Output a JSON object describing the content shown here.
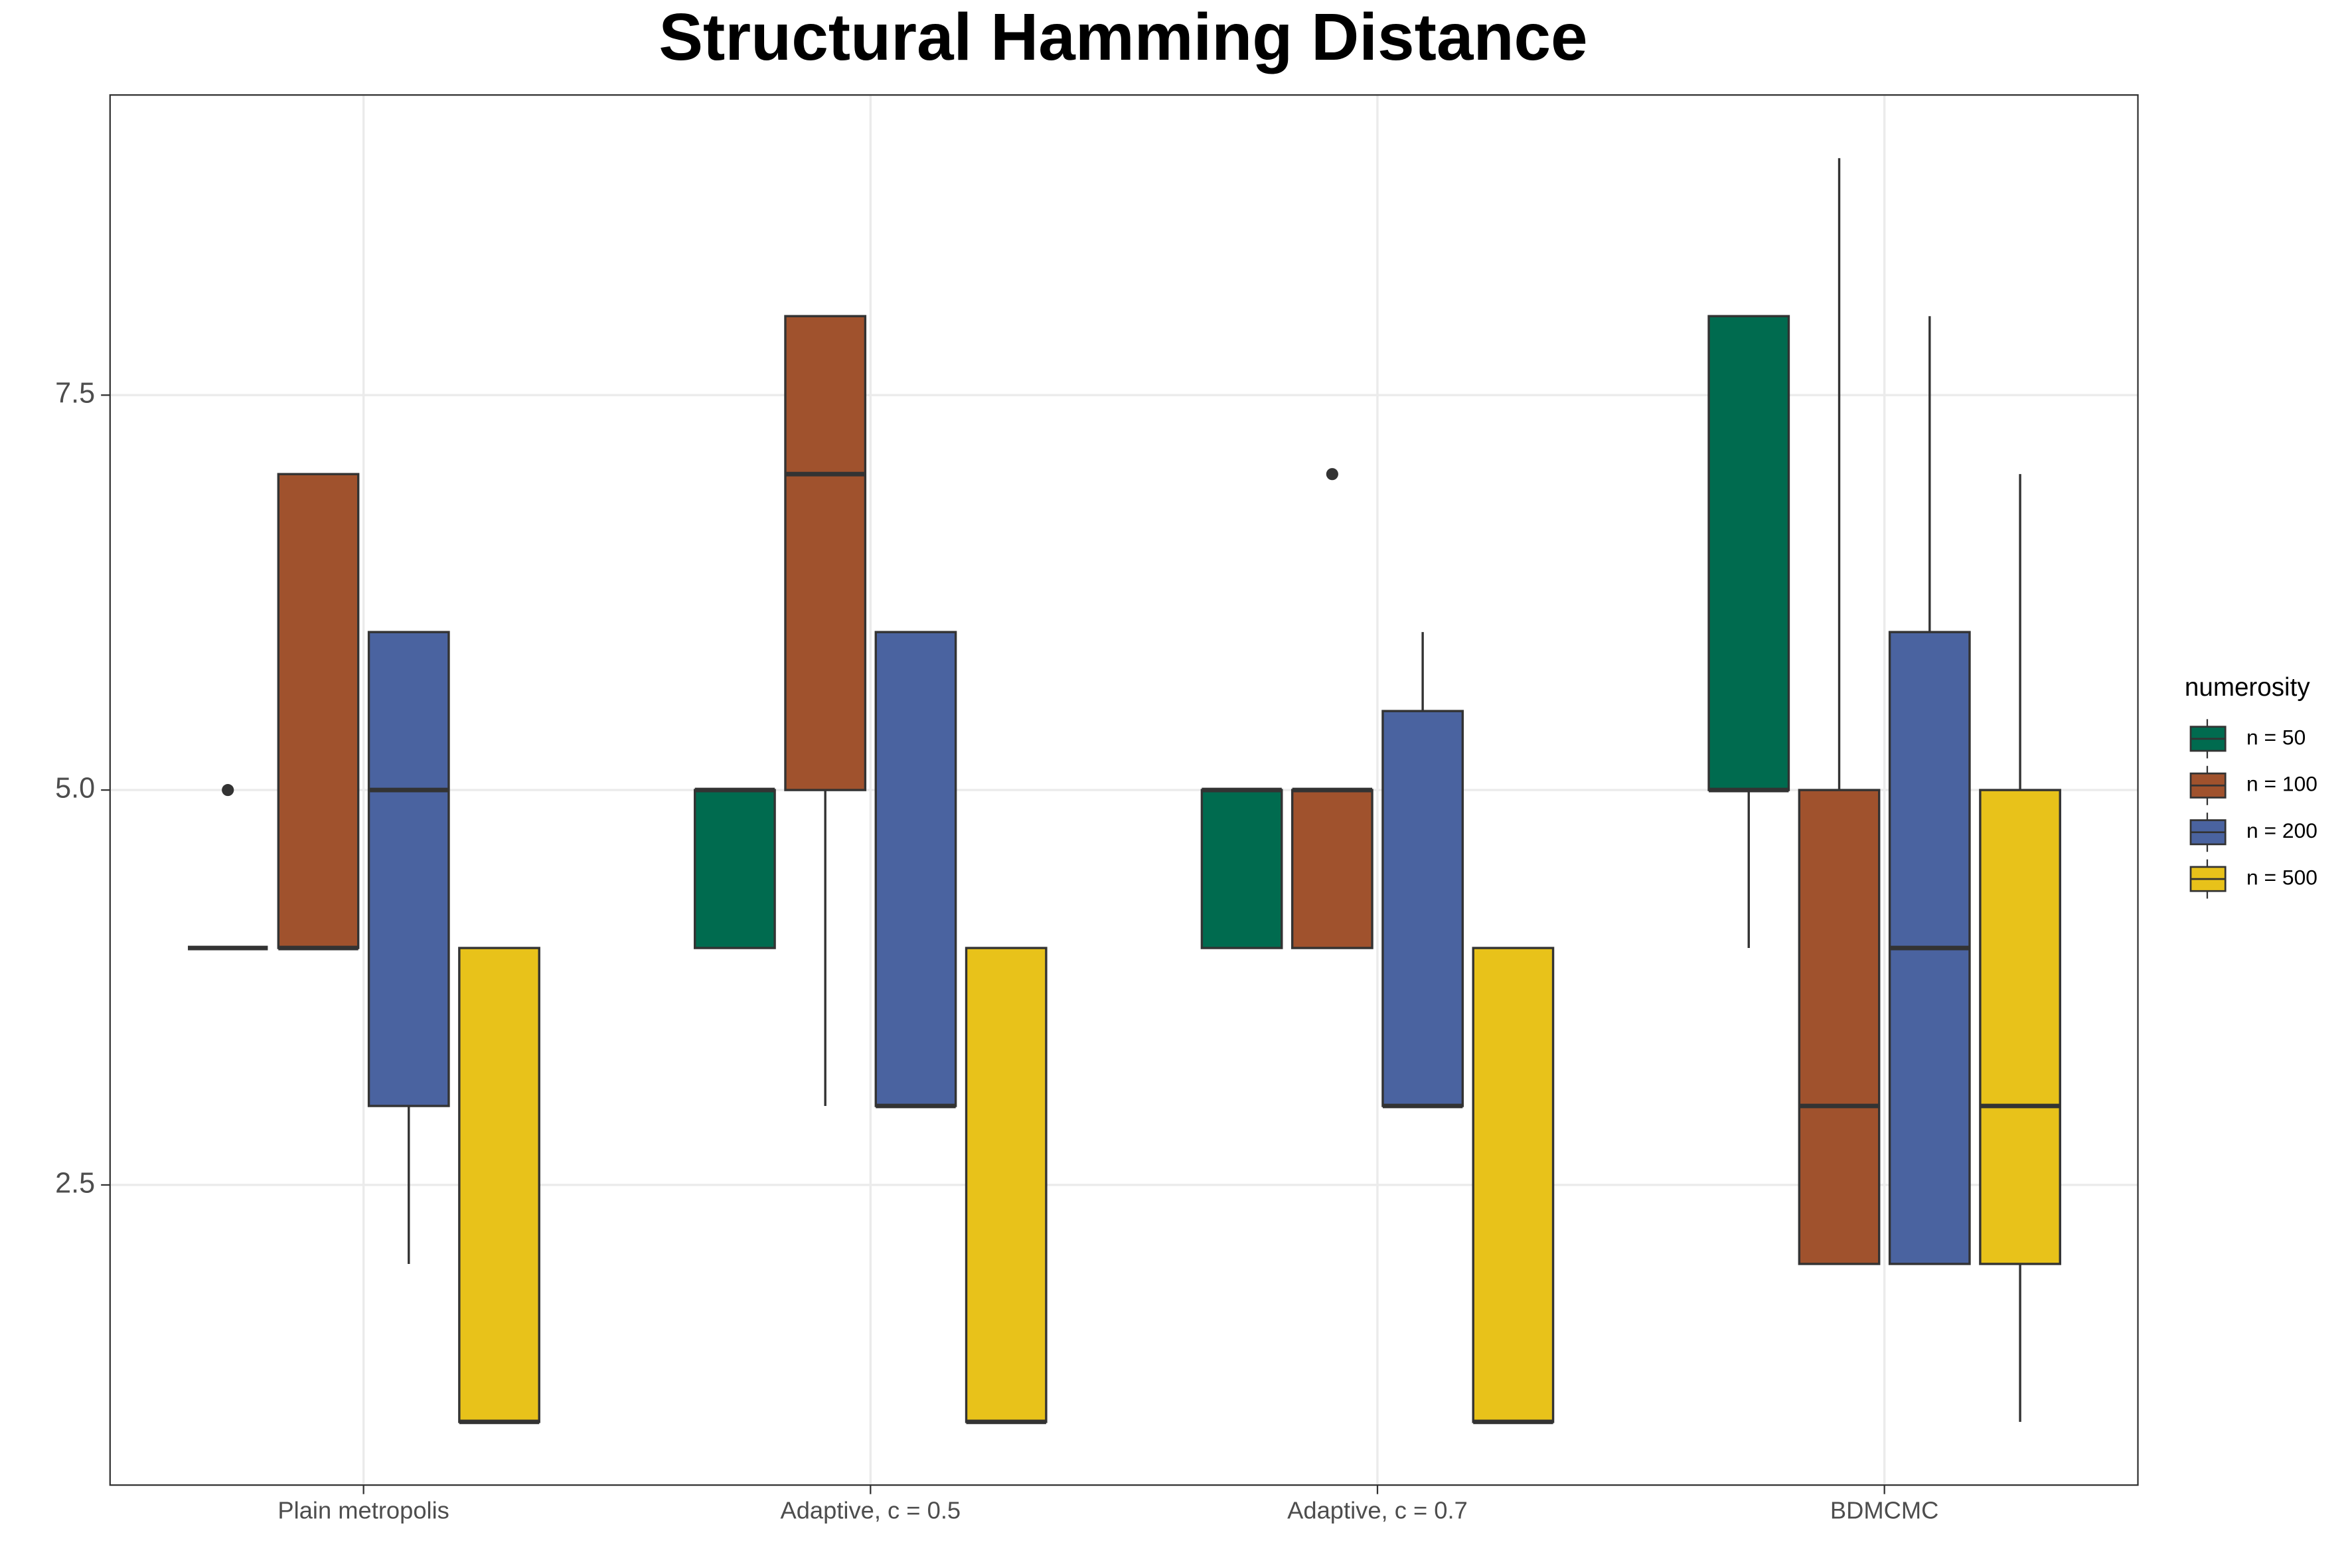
{
  "chart_data": {
    "type": "boxplot",
    "title": "Structural Hamming Distance",
    "categories": [
      "Plain metropolis",
      "Adaptive, c = 0.5",
      "Adaptive, c = 0.7",
      "BDMCMC"
    ],
    "legend_title": "numerosity",
    "legend": "right",
    "grid": true,
    "ylim": [
      0.6,
      9.4
    ],
    "yticks": [
      2.5,
      {
        "value": 5,
        "label": "5.0"
      },
      7.5
    ],
    "series": [
      {
        "name": "n = 50",
        "color": "#006b4f",
        "min": [
          4,
          4,
          4,
          4
        ],
        "q1": [
          4,
          4,
          4,
          5
        ],
        "median": [
          4,
          5,
          5,
          5
        ],
        "q3": [
          4,
          5,
          5,
          8
        ],
        "max": [
          4,
          5,
          5,
          8
        ],
        "outliers": [
          [
            5
          ],
          [],
          [],
          []
        ]
      },
      {
        "name": "n = 100",
        "color": "#a0522d",
        "min": [
          4,
          3,
          4,
          2
        ],
        "q1": [
          4,
          5,
          4,
          2
        ],
        "median": [
          4,
          7,
          5,
          3
        ],
        "q3": [
          7,
          8,
          5,
          5
        ],
        "max": [
          7,
          8,
          5,
          9
        ],
        "outliers": [
          [],
          [],
          [
            7
          ],
          []
        ]
      },
      {
        "name": "n = 200",
        "color": "#4a63a0",
        "min": [
          2,
          3,
          3,
          2
        ],
        "q1": [
          3,
          3,
          3,
          2
        ],
        "median": [
          5,
          3,
          3,
          4
        ],
        "q3": [
          6,
          6,
          5.5,
          6
        ],
        "max": [
          6,
          6,
          6,
          8
        ],
        "outliers": [
          [],
          [],
          [],
          []
        ]
      },
      {
        "name": "n = 500",
        "color": "#e8c21a",
        "min": [
          1,
          1,
          1,
          1
        ],
        "q1": [
          1,
          1,
          1,
          2
        ],
        "median": [
          1,
          1,
          1,
          3
        ],
        "q3": [
          4,
          4,
          4,
          5
        ],
        "max": [
          4,
          4,
          4,
          7
        ],
        "outliers": [
          [],
          [],
          [],
          []
        ]
      }
    ]
  }
}
